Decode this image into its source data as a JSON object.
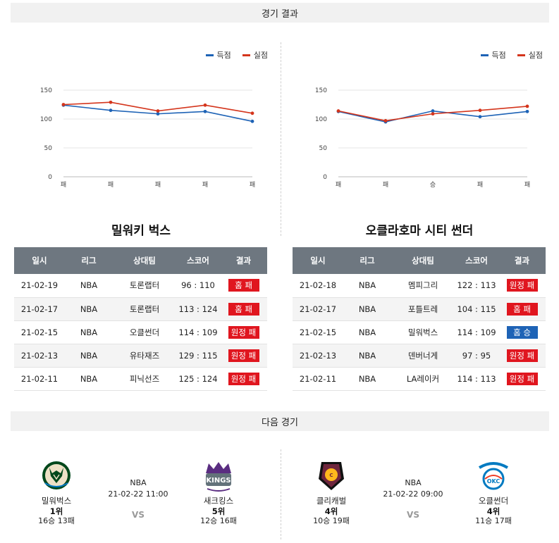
{
  "sections": {
    "results_title": "경기 결과",
    "next_title": "다음 경기"
  },
  "legend": {
    "scored": "득점",
    "conceded": "실점",
    "scored_color": "#1e63b6",
    "conceded_color": "#d4351c"
  },
  "chart_data": [
    {
      "type": "line",
      "categories": [
        "패",
        "패",
        "패",
        "패",
        "패"
      ],
      "ylim": [
        0,
        150
      ],
      "yticks": [
        0,
        50,
        100,
        150
      ],
      "grid": true,
      "legend_position": "top-right",
      "series": [
        {
          "name": "득점",
          "color": "#1e63b6",
          "values": [
            124,
            115,
            109,
            113,
            96
          ]
        },
        {
          "name": "실점",
          "color": "#d4351c",
          "values": [
            125,
            129,
            114,
            124,
            110
          ]
        }
      ]
    },
    {
      "type": "line",
      "categories": [
        "패",
        "패",
        "승",
        "패",
        "패"
      ],
      "ylim": [
        0,
        150
      ],
      "yticks": [
        0,
        50,
        100,
        150
      ],
      "grid": true,
      "legend_position": "top-right",
      "series": [
        {
          "name": "득점",
          "color": "#1e63b6",
          "values": [
            113,
            95,
            114,
            104,
            113
          ]
        },
        {
          "name": "실점",
          "color": "#d4351c",
          "values": [
            114,
            97,
            109,
            115,
            122
          ]
        }
      ]
    }
  ],
  "table_headers": [
    "일시",
    "리그",
    "상대팀",
    "스코어",
    "결과"
  ],
  "left_team": {
    "title": "밀워키 벅스",
    "rows": [
      {
        "date": "21-02-19",
        "league": "NBA",
        "opponent": "토론랩터",
        "score": "96 : 110",
        "result": "홈 패",
        "win": false
      },
      {
        "date": "21-02-17",
        "league": "NBA",
        "opponent": "토론랩터",
        "score": "113 : 124",
        "result": "홈 패",
        "win": false
      },
      {
        "date": "21-02-15",
        "league": "NBA",
        "opponent": "오클썬더",
        "score": "114 : 109",
        "result": "원정 패",
        "win": false
      },
      {
        "date": "21-02-13",
        "league": "NBA",
        "opponent": "유타재즈",
        "score": "129 : 115",
        "result": "원정 패",
        "win": false
      },
      {
        "date": "21-02-11",
        "league": "NBA",
        "opponent": "피닉선즈",
        "score": "125 : 124",
        "result": "원정 패",
        "win": false
      }
    ]
  },
  "right_team": {
    "title": "오클라호마 시티 썬더",
    "rows": [
      {
        "date": "21-02-18",
        "league": "NBA",
        "opponent": "멤피그리",
        "score": "122 : 113",
        "result": "원정 패",
        "win": false
      },
      {
        "date": "21-02-17",
        "league": "NBA",
        "opponent": "포틀트레",
        "score": "104 : 115",
        "result": "홈 패",
        "win": false
      },
      {
        "date": "21-02-15",
        "league": "NBA",
        "opponent": "밀워벅스",
        "score": "114 : 109",
        "result": "홈 승",
        "win": true
      },
      {
        "date": "21-02-13",
        "league": "NBA",
        "opponent": "덴버너게",
        "score": "97 : 95",
        "result": "원정 패",
        "win": false
      },
      {
        "date": "21-02-11",
        "league": "NBA",
        "opponent": "LA레이커",
        "score": "114 : 113",
        "result": "원정 패",
        "win": false
      }
    ]
  },
  "next_games": [
    {
      "league": "NBA",
      "time": "21-02-22 11:00",
      "vs": "VS",
      "home": {
        "name": "밀워벅스",
        "rank": "1위",
        "record": "16승 13패",
        "logo": "bucks-logo",
        "logo_color": "#00471b"
      },
      "away": {
        "name": "새크킹스",
        "rank": "5위",
        "record": "12승 16패",
        "logo": "kings-logo",
        "logo_color": "#5a2d81"
      }
    },
    {
      "league": "NBA",
      "time": "21-02-22 09:00",
      "vs": "VS",
      "home": {
        "name": "클리캐벌",
        "rank": "4위",
        "record": "10승 19패",
        "logo": "cavaliers-logo",
        "logo_color": "#6f263d"
      },
      "away": {
        "name": "오클썬더",
        "rank": "4위",
        "record": "11승 17패",
        "logo": "thunder-logo",
        "logo_color": "#007ac1"
      }
    }
  ]
}
